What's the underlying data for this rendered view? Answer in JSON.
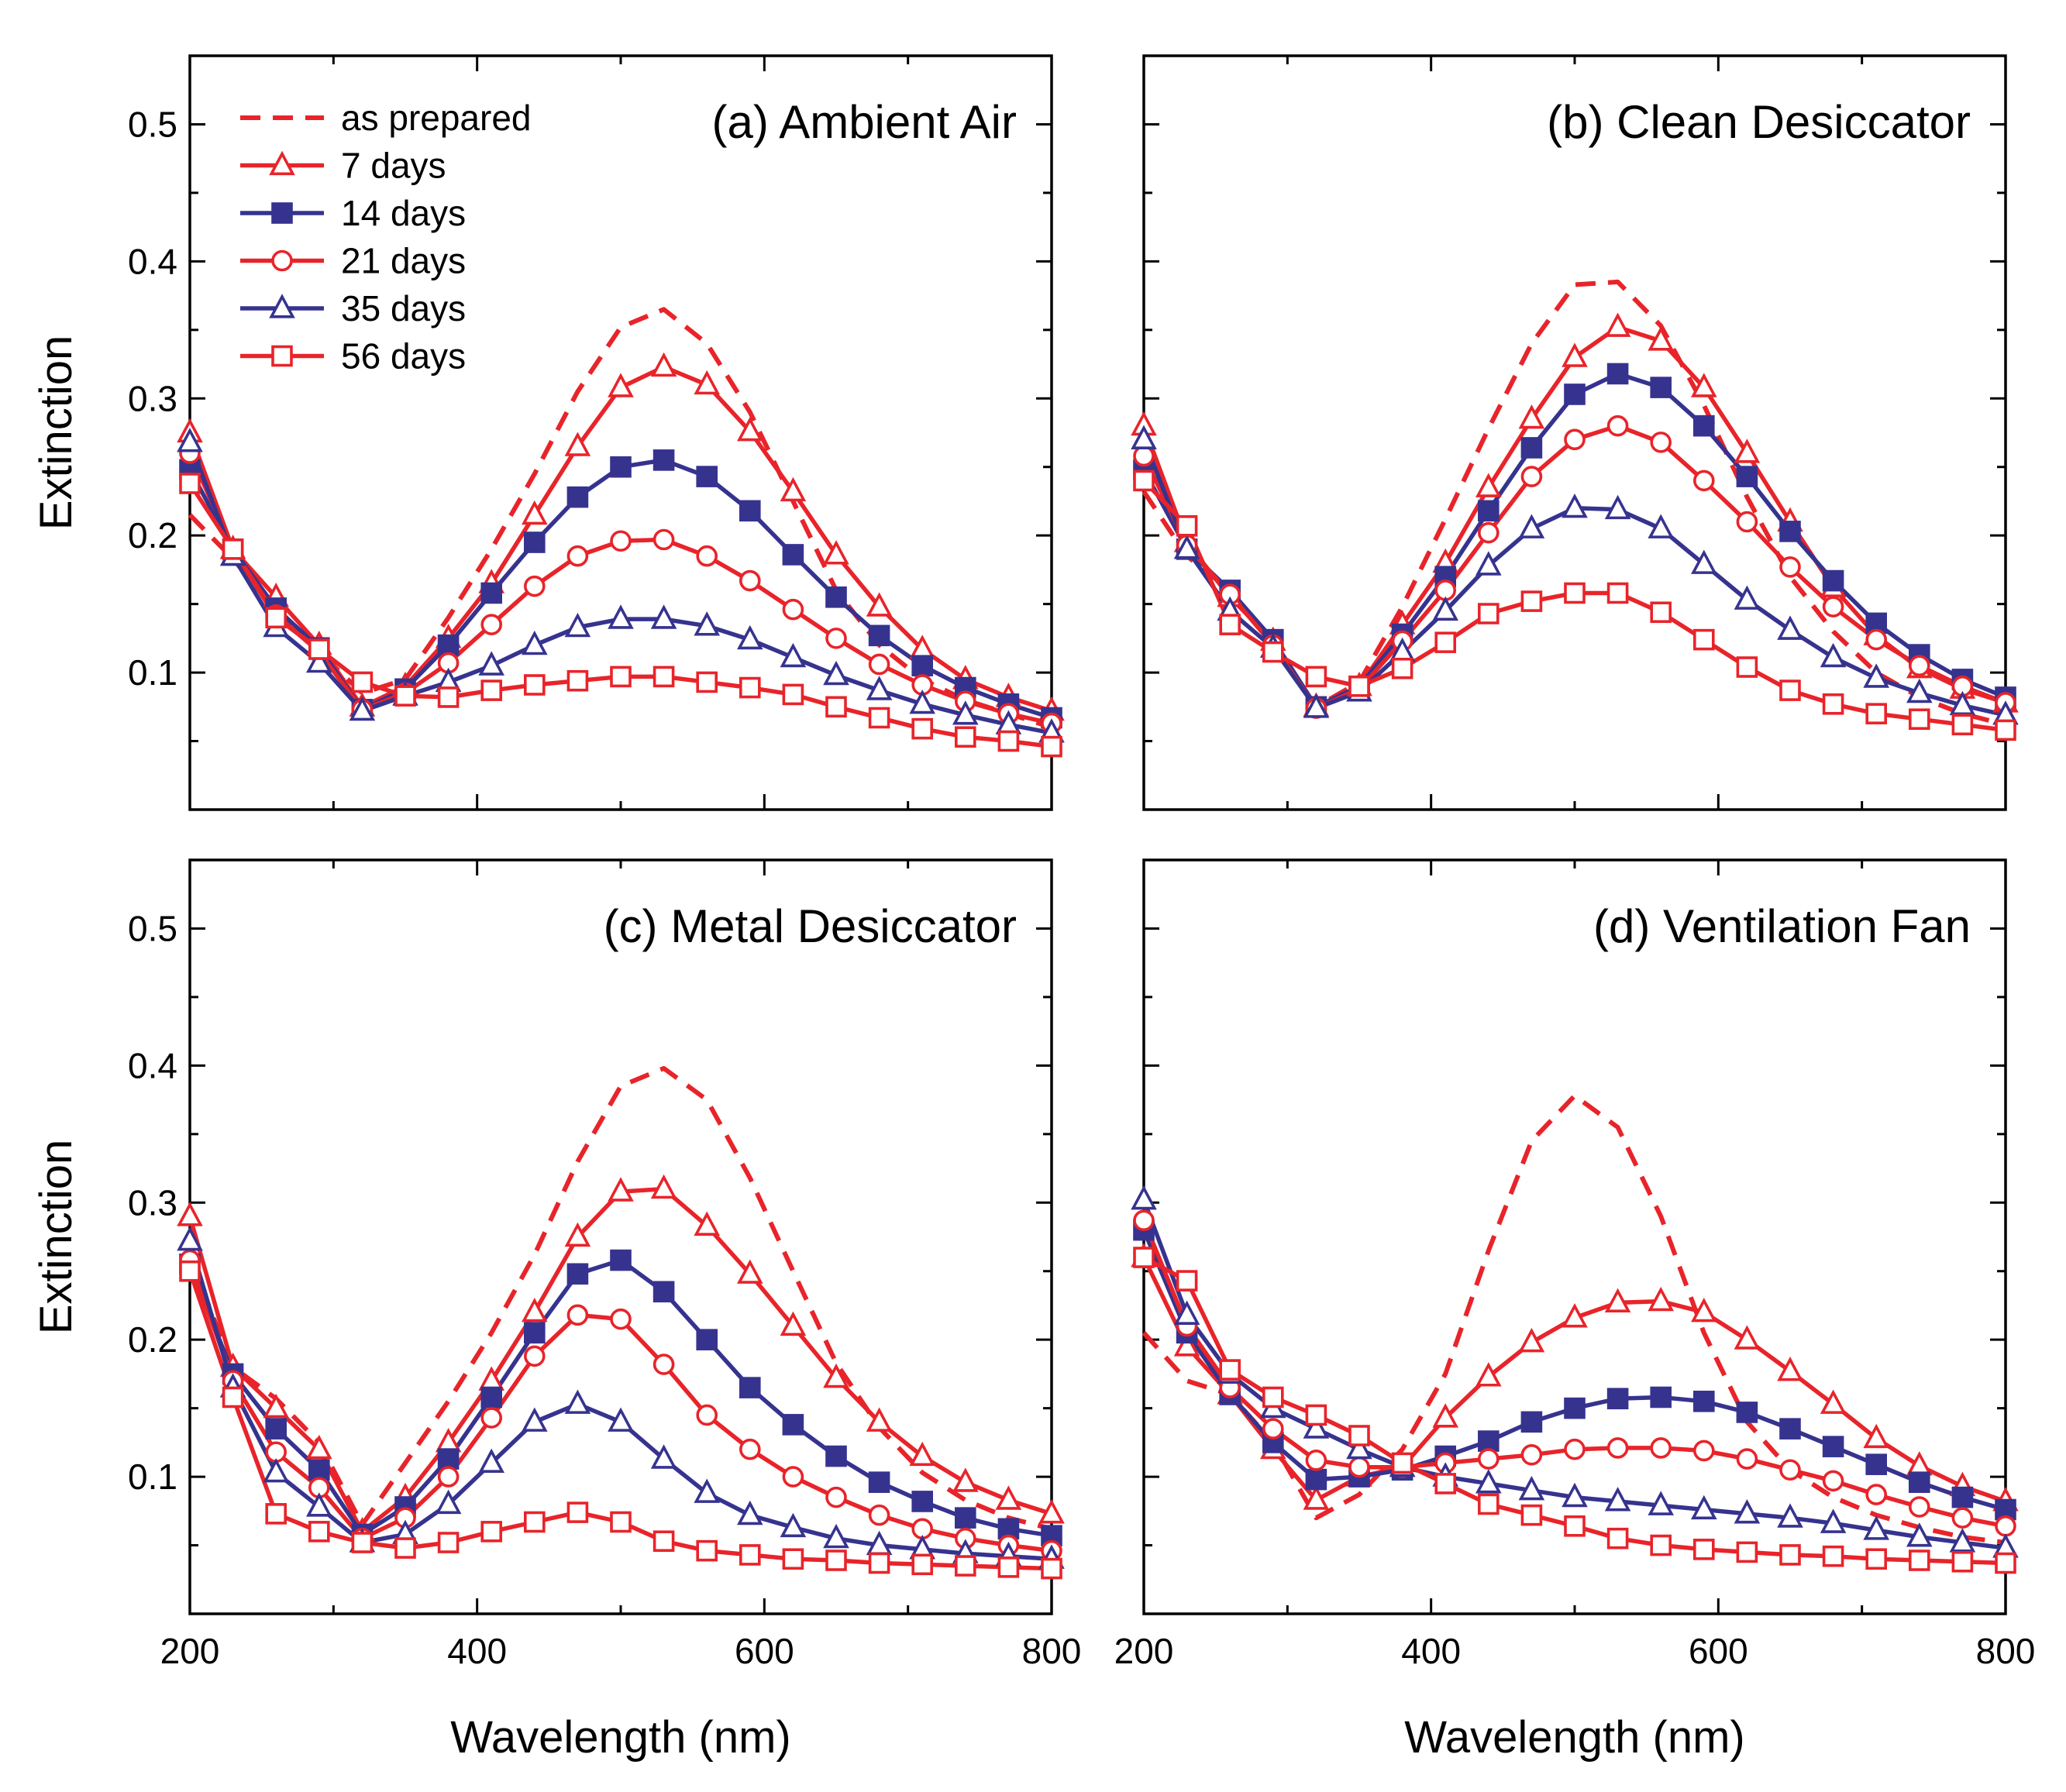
{
  "colors": {
    "red": "#e8242a",
    "blue": "#36338f",
    "frame": "#000000",
    "background": "#ffffff"
  },
  "series_styles": [
    {
      "name": "as prepared",
      "color": "#e8242a",
      "dashed": true,
      "marker": "none",
      "filled": false
    },
    {
      "name": "7 days",
      "color": "#e8242a",
      "dashed": false,
      "marker": "triangle",
      "filled": false
    },
    {
      "name": "14 days",
      "color": "#36338f",
      "dashed": false,
      "marker": "square",
      "filled": true
    },
    {
      "name": "21 days",
      "color": "#e8242a",
      "dashed": false,
      "marker": "circle",
      "filled": false
    },
    {
      "name": "35 days",
      "color": "#36338f",
      "dashed": false,
      "marker": "triangle",
      "filled": false
    },
    {
      "name": "56 days",
      "color": "#e8242a",
      "dashed": false,
      "marker": "square",
      "filled": false
    }
  ],
  "legend": {
    "placement": "top-left of panel (a)",
    "entries": [
      "as prepared",
      "7 days",
      "14 days",
      "21 days",
      "35 days",
      "56 days"
    ]
  },
  "chart_data": [
    {
      "type": "line",
      "title": "(a) Ambient Air",
      "xlabel": "Wavelength (nm)",
      "ylabel": "Extinction",
      "xlim": [
        200,
        800
      ],
      "ylim": [
        0,
        0.55
      ],
      "xticks": [
        200,
        400,
        600,
        800
      ],
      "yticks": [
        0.1,
        0.2,
        0.3,
        0.4,
        0.5
      ],
      "ytick_labels": [
        "0.1",
        "0.2",
        "0.3",
        "0.4",
        "0.5"
      ],
      "show_x_tick_labels": false,
      "show_y_tick_labels": true,
      "show_xlabel": false,
      "show_ylabel": true,
      "x": [
        200,
        230,
        260,
        290,
        320,
        350,
        380,
        410,
        440,
        470,
        500,
        530,
        560,
        590,
        620,
        650,
        680,
        710,
        740,
        770,
        800
      ],
      "series": [
        {
          "name": "as prepared",
          "values": [
            0.215,
            0.183,
            0.145,
            0.115,
            0.085,
            0.095,
            0.14,
            0.19,
            0.245,
            0.305,
            0.352,
            0.365,
            0.34,
            0.29,
            0.225,
            0.16,
            0.12,
            0.095,
            0.08,
            0.07,
            0.06
          ]
        },
        {
          "name": "7 days",
          "values": [
            0.275,
            0.19,
            0.155,
            0.12,
            0.075,
            0.09,
            0.125,
            0.165,
            0.215,
            0.265,
            0.308,
            0.323,
            0.31,
            0.276,
            0.232,
            0.186,
            0.148,
            0.117,
            0.095,
            0.082,
            0.072
          ]
        },
        {
          "name": "14 days",
          "values": [
            0.248,
            0.19,
            0.147,
            0.118,
            0.073,
            0.088,
            0.12,
            0.158,
            0.195,
            0.228,
            0.25,
            0.255,
            0.243,
            0.218,
            0.186,
            0.155,
            0.127,
            0.105,
            0.089,
            0.077,
            0.067
          ]
        },
        {
          "name": "21 days",
          "values": [
            0.26,
            0.19,
            0.142,
            0.115,
            0.073,
            0.085,
            0.107,
            0.135,
            0.163,
            0.185,
            0.196,
            0.197,
            0.185,
            0.167,
            0.146,
            0.125,
            0.106,
            0.091,
            0.079,
            0.07,
            0.063
          ]
        },
        {
          "name": "35 days",
          "values": [
            0.268,
            0.185,
            0.133,
            0.107,
            0.072,
            0.083,
            0.093,
            0.105,
            0.12,
            0.133,
            0.139,
            0.139,
            0.134,
            0.124,
            0.111,
            0.098,
            0.087,
            0.077,
            0.069,
            0.062,
            0.056
          ]
        },
        {
          "name": "56 days",
          "values": [
            0.238,
            0.19,
            0.14,
            0.117,
            0.093,
            0.083,
            0.082,
            0.087,
            0.091,
            0.094,
            0.097,
            0.097,
            0.093,
            0.089,
            0.084,
            0.075,
            0.067,
            0.059,
            0.053,
            0.05,
            0.046
          ]
        }
      ]
    },
    {
      "type": "line",
      "title": "(b) Clean Desiccator",
      "xlabel": "Wavelength (nm)",
      "ylabel": "Extinction",
      "xlim": [
        200,
        800
      ],
      "ylim": [
        0,
        0.55
      ],
      "xticks": [
        200,
        400,
        600,
        800
      ],
      "yticks": [
        0.1,
        0.2,
        0.3,
        0.4,
        0.5
      ],
      "show_x_tick_labels": false,
      "show_y_tick_labels": false,
      "show_xlabel": false,
      "show_ylabel": false,
      "x": [
        200,
        230,
        260,
        290,
        320,
        350,
        380,
        410,
        440,
        470,
        500,
        530,
        560,
        590,
        620,
        650,
        680,
        710,
        740,
        770,
        800
      ],
      "series": [
        {
          "name": "as prepared",
          "values": [
            0.232,
            0.185,
            0.16,
            0.12,
            0.075,
            0.093,
            0.148,
            0.212,
            0.278,
            0.34,
            0.383,
            0.385,
            0.353,
            0.295,
            0.228,
            0.17,
            0.13,
            0.1,
            0.082,
            0.07,
            0.062
          ]
        },
        {
          "name": "7 days",
          "values": [
            0.28,
            0.195,
            0.155,
            0.123,
            0.075,
            0.09,
            0.135,
            0.18,
            0.235,
            0.285,
            0.33,
            0.352,
            0.342,
            0.308,
            0.26,
            0.21,
            0.162,
            0.127,
            0.103,
            0.088,
            0.078
          ]
        },
        {
          "name": "14 days",
          "values": [
            0.248,
            0.19,
            0.16,
            0.124,
            0.075,
            0.09,
            0.128,
            0.17,
            0.218,
            0.264,
            0.303,
            0.318,
            0.308,
            0.28,
            0.243,
            0.203,
            0.167,
            0.136,
            0.113,
            0.095,
            0.082
          ]
        },
        {
          "name": "21 days",
          "values": [
            0.258,
            0.193,
            0.157,
            0.12,
            0.074,
            0.088,
            0.123,
            0.16,
            0.202,
            0.243,
            0.27,
            0.28,
            0.268,
            0.24,
            0.21,
            0.177,
            0.148,
            0.124,
            0.105,
            0.09,
            0.078
          ]
        },
        {
          "name": "35 days",
          "values": [
            0.27,
            0.19,
            0.145,
            0.118,
            0.074,
            0.086,
            0.115,
            0.145,
            0.178,
            0.205,
            0.22,
            0.219,
            0.205,
            0.179,
            0.153,
            0.131,
            0.111,
            0.096,
            0.085,
            0.076,
            0.069
          ]
        },
        {
          "name": "56 days",
          "values": [
            0.24,
            0.207,
            0.135,
            0.115,
            0.097,
            0.09,
            0.103,
            0.122,
            0.143,
            0.152,
            0.158,
            0.158,
            0.144,
            0.124,
            0.104,
            0.087,
            0.077,
            0.07,
            0.066,
            0.062,
            0.058
          ]
        }
      ]
    },
    {
      "type": "line",
      "title": "(c) Metal Desiccator",
      "xlabel": "Wavelength (nm)",
      "ylabel": "Extinction",
      "xlim": [
        200,
        800
      ],
      "ylim": [
        0,
        0.55
      ],
      "xticks": [
        200,
        400,
        600,
        800
      ],
      "xtick_labels": [
        "200",
        "400",
        "600",
        "800"
      ],
      "yticks": [
        0.1,
        0.2,
        0.3,
        0.4,
        0.5
      ],
      "ytick_labels": [
        "0.1",
        "0.2",
        "0.3",
        "0.4",
        "0.5"
      ],
      "show_x_tick_labels": true,
      "show_y_tick_labels": true,
      "show_xlabel": true,
      "show_ylabel": true,
      "x": [
        200,
        230,
        260,
        290,
        320,
        350,
        380,
        410,
        440,
        470,
        500,
        530,
        560,
        590,
        620,
        650,
        680,
        710,
        740,
        770,
        800
      ],
      "series": [
        {
          "name": "as prepared",
          "values": [
            0.26,
            0.18,
            0.157,
            0.125,
            0.065,
            0.11,
            0.155,
            0.205,
            0.262,
            0.33,
            0.385,
            0.398,
            0.375,
            0.318,
            0.25,
            0.183,
            0.136,
            0.103,
            0.083,
            0.07,
            0.062
          ]
        },
        {
          "name": "7 days",
          "values": [
            0.29,
            0.18,
            0.15,
            0.12,
            0.06,
            0.085,
            0.125,
            0.17,
            0.22,
            0.275,
            0.308,
            0.31,
            0.283,
            0.248,
            0.21,
            0.172,
            0.14,
            0.115,
            0.096,
            0.083,
            0.073
          ]
        },
        {
          "name": "14 days",
          "values": [
            0.255,
            0.175,
            0.135,
            0.105,
            0.058,
            0.078,
            0.113,
            0.158,
            0.205,
            0.248,
            0.258,
            0.235,
            0.2,
            0.165,
            0.138,
            0.115,
            0.096,
            0.082,
            0.07,
            0.062,
            0.057
          ]
        },
        {
          "name": "21 days",
          "values": [
            0.258,
            0.17,
            0.118,
            0.092,
            0.055,
            0.07,
            0.1,
            0.143,
            0.188,
            0.218,
            0.215,
            0.182,
            0.145,
            0.12,
            0.1,
            0.085,
            0.072,
            0.062,
            0.055,
            0.05,
            0.046
          ]
        },
        {
          "name": "35 days",
          "values": [
            0.272,
            0.165,
            0.103,
            0.078,
            0.052,
            0.058,
            0.08,
            0.11,
            0.14,
            0.153,
            0.14,
            0.113,
            0.088,
            0.072,
            0.063,
            0.055,
            0.05,
            0.047,
            0.044,
            0.042,
            0.04
          ]
        },
        {
          "name": "56 days",
          "values": [
            0.25,
            0.158,
            0.073,
            0.06,
            0.052,
            0.048,
            0.052,
            0.06,
            0.067,
            0.074,
            0.067,
            0.053,
            0.046,
            0.043,
            0.04,
            0.039,
            0.037,
            0.036,
            0.035,
            0.034,
            0.033
          ]
        }
      ]
    },
    {
      "type": "line",
      "title": "(d) Ventilation Fan",
      "xlabel": "Wavelength (nm)",
      "ylabel": "Extinction",
      "xlim": [
        200,
        800
      ],
      "ylim": [
        0,
        0.55
      ],
      "xticks": [
        200,
        400,
        600,
        800
      ],
      "xtick_labels": [
        "200",
        "400",
        "600",
        "800"
      ],
      "yticks": [
        0.1,
        0.2,
        0.3,
        0.4,
        0.5
      ],
      "show_x_tick_labels": true,
      "show_y_tick_labels": false,
      "show_xlabel": true,
      "show_ylabel": false,
      "x": [
        200,
        230,
        260,
        290,
        320,
        350,
        380,
        410,
        440,
        470,
        500,
        530,
        560,
        590,
        620,
        650,
        680,
        710,
        740,
        770,
        800
      ],
      "series": [
        {
          "name": "as prepared",
          "values": [
            0.205,
            0.17,
            0.16,
            0.125,
            0.07,
            0.087,
            0.12,
            0.175,
            0.265,
            0.345,
            0.378,
            0.355,
            0.29,
            0.205,
            0.14,
            0.105,
            0.085,
            0.072,
            0.063,
            0.056,
            0.052
          ]
        },
        {
          "name": "7 days",
          "values": [
            0.26,
            0.195,
            0.16,
            0.12,
            0.083,
            0.1,
            0.107,
            0.143,
            0.173,
            0.198,
            0.216,
            0.227,
            0.228,
            0.22,
            0.2,
            0.177,
            0.153,
            0.128,
            0.108,
            0.093,
            0.082
          ]
        },
        {
          "name": "14 days",
          "values": [
            0.28,
            0.205,
            0.16,
            0.125,
            0.098,
            0.1,
            0.105,
            0.115,
            0.126,
            0.14,
            0.15,
            0.157,
            0.158,
            0.155,
            0.147,
            0.135,
            0.122,
            0.109,
            0.096,
            0.085,
            0.076
          ]
        },
        {
          "name": "21 days",
          "values": [
            0.287,
            0.21,
            0.165,
            0.135,
            0.112,
            0.107,
            0.107,
            0.11,
            0.113,
            0.116,
            0.12,
            0.121,
            0.121,
            0.119,
            0.113,
            0.105,
            0.097,
            0.087,
            0.078,
            0.07,
            0.064
          ]
        },
        {
          "name": "35 days",
          "values": [
            0.302,
            0.218,
            0.175,
            0.15,
            0.135,
            0.12,
            0.107,
            0.1,
            0.095,
            0.09,
            0.085,
            0.082,
            0.079,
            0.076,
            0.073,
            0.07,
            0.066,
            0.061,
            0.056,
            0.052,
            0.048
          ]
        },
        {
          "name": "56 days",
          "values": [
            0.26,
            0.243,
            0.178,
            0.158,
            0.145,
            0.13,
            0.11,
            0.095,
            0.08,
            0.072,
            0.064,
            0.055,
            0.05,
            0.047,
            0.045,
            0.043,
            0.042,
            0.04,
            0.039,
            0.038,
            0.037
          ]
        }
      ]
    }
  ]
}
